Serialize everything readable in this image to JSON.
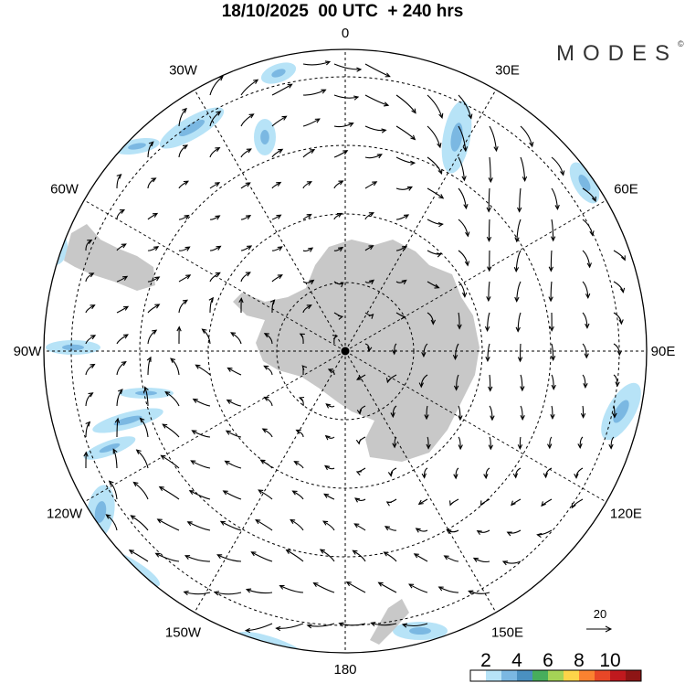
{
  "title": "18/10/2025  00 UTC  + 240 hrs",
  "logo": {
    "text": "MODES",
    "mark": "©"
  },
  "map": {
    "projection": "south-polar-stereographic",
    "longitude_labels": [
      "0",
      "30E",
      "60E",
      "90E",
      "120E",
      "150E",
      "180",
      "150W",
      "120W",
      "90W",
      "60W",
      "30W"
    ]
  },
  "reference_vector": {
    "label": "20"
  },
  "colorbar": {
    "tick_labels": [
      "2",
      "4",
      "6",
      "8",
      "10"
    ],
    "colors": [
      "#ffffff",
      "#b7e3f7",
      "#7bb8e2",
      "#4a90c0",
      "#47ae5c",
      "#a5d356",
      "#fdd449",
      "#fb8230",
      "#e84727",
      "#c0191e",
      "#8e1515"
    ]
  },
  "colors": {
    "land": "#c8c8c8",
    "shade_light": "#b7e3f7",
    "shade_mid": "#7bb8e2"
  }
}
